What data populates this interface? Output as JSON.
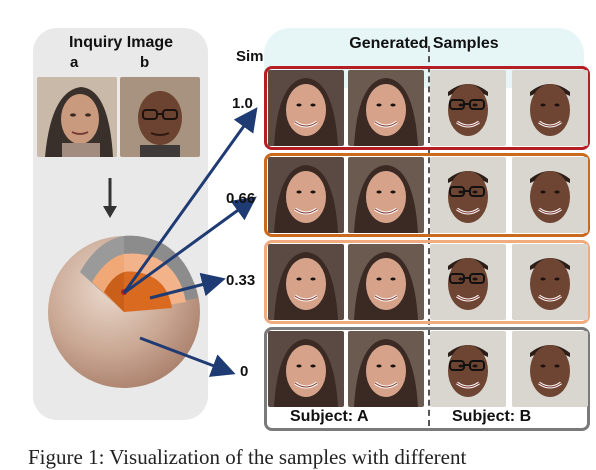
{
  "figure": {
    "inquiry_title": "Inquiry Image",
    "inquiry_labels": [
      "a",
      "b"
    ],
    "sim_header": "Sim",
    "generated_title": "Generated Samples",
    "rows": [
      {
        "sim": "1.0",
        "color": "#b51f24"
      },
      {
        "sim": "0.66",
        "color": "#c96a1e"
      },
      {
        "sim": "0.33",
        "color": "#f0ab7f"
      },
      {
        "sim": "0",
        "color": "#7a7a7a"
      }
    ],
    "subject_a": "Subject: A",
    "subject_b": "Subject: B"
  },
  "caption": {
    "text": "Figure 1: Visualization of the samples with different"
  },
  "colors": {
    "left_panel": "#e9e9e9",
    "right_panel": "#e6f6f7",
    "arrow": "#1f3b73",
    "sphere_outer": "#c9a793",
    "core": "#d96a1f",
    "mid_layer": "#f2b28a"
  }
}
